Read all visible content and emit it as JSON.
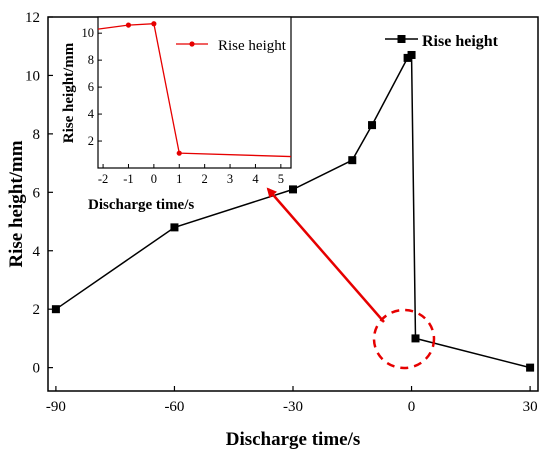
{
  "chart_data": [
    {
      "type": "line",
      "xlabel": "Discharge time/s",
      "ylabel": "Rise height/mm",
      "xlim": [
        -92,
        32
      ],
      "ylim": [
        -0.8,
        12
      ],
      "xticks": [
        -90,
        -60,
        -30,
        0,
        30
      ],
      "yticks": [
        0,
        2,
        4,
        6,
        8,
        10,
        12
      ],
      "series": [
        {
          "name": "Rise height",
          "color": "#000000",
          "marker": "square",
          "points": [
            [
              -90,
              2.0
            ],
            [
              -60,
              4.8
            ],
            [
              -30,
              6.1
            ],
            [
              -15,
              7.1
            ],
            [
              -10,
              8.3
            ],
            [
              -1,
              10.6
            ],
            [
              0,
              10.7
            ],
            [
              1,
              1.0
            ],
            [
              30,
              0.0
            ]
          ]
        }
      ],
      "legend": "top-right",
      "annotations": [
        "dashed-red-circle-around-jump",
        "red-arrow-to-inset"
      ]
    },
    {
      "type": "line",
      "placement": "inset-top-left",
      "xlabel": "Discharge time/s",
      "ylabel": "Rise height/mm",
      "xlim": [
        -2.2,
        5.4
      ],
      "ylim": [
        0,
        11.2
      ],
      "xticks": [
        -2,
        -1,
        0,
        1,
        2,
        3,
        4,
        5
      ],
      "yticks": [
        2,
        4,
        6,
        8,
        10
      ],
      "series": [
        {
          "name": "Rise height",
          "color": "#e60000",
          "marker": "circle",
          "points": [
            [
              -2.2,
              10.3
            ],
            [
              -1,
              10.6
            ],
            [
              0,
              10.7
            ],
            [
              1,
              1.1
            ],
            [
              5.4,
              0.85
            ]
          ]
        }
      ],
      "legend": "top-right"
    }
  ]
}
